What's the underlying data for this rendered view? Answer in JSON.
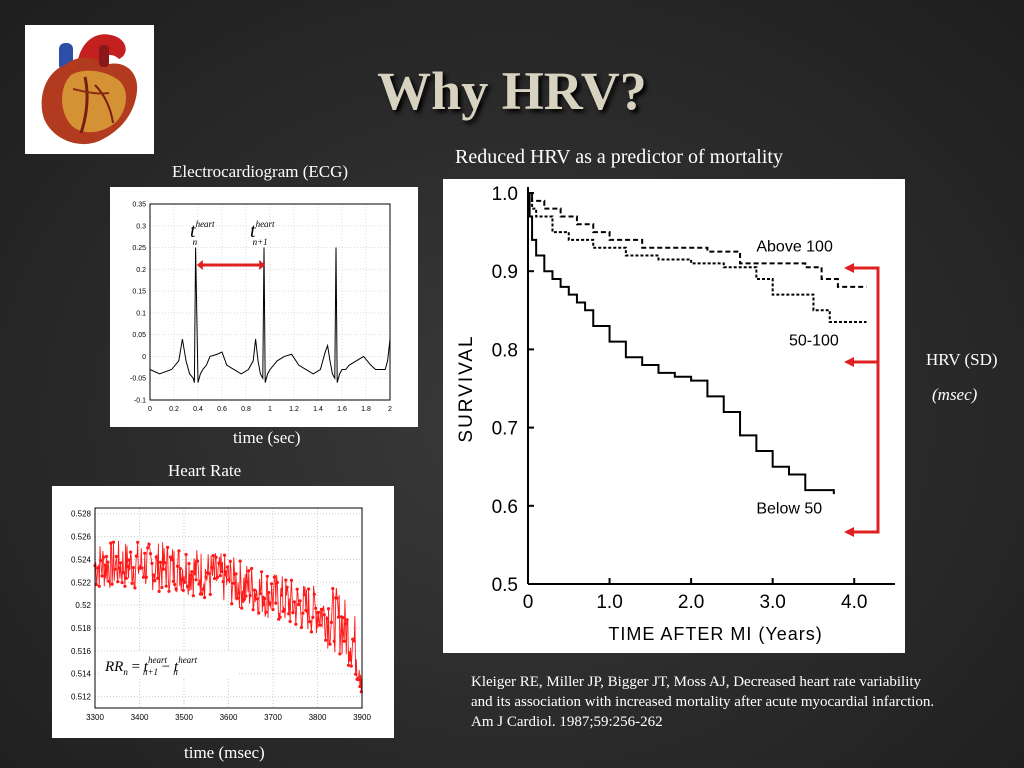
{
  "title": "Why HRV?",
  "labels": {
    "ecg_title": "Electrocardiogram (ECG)",
    "ecg_xlabel": "time (sec)",
    "hr_title": "Heart Rate",
    "hr_xlabel": "time (msec)",
    "survival_title": "Reduced HRV as a predictor of mortality",
    "hrv_label": "HRV (SD)",
    "hrv_unit": "(msec)"
  },
  "reference": "Kleiger RE, Miller JP, Bigger JT, Moss AJ, Decreased heart rate variability and its association with increased mortality after acute myocardial infarction. Am J Cardiol. 1987;59:256-262",
  "chart_data": [
    {
      "type": "line",
      "title": "Electrocardiogram (ECG)",
      "xlabel": "time (sec)",
      "ylabel": "",
      "xlim": [
        0,
        2
      ],
      "ylim": [
        -0.1,
        0.35
      ],
      "x_ticks": [
        "0",
        "0.2",
        "0.4",
        "0.6",
        "0.8",
        "1",
        "1.2",
        "1.4",
        "1.6",
        "1.8",
        "2"
      ],
      "y_ticks": [
        "-0.1",
        "-0.05",
        "0",
        "0.05",
        "0.1",
        "0.15",
        "0.2",
        "0.25",
        "0.3",
        "0.35"
      ],
      "series": [
        {
          "name": "ECG",
          "x": [
            0,
            0.08,
            0.18,
            0.24,
            0.27,
            0.3,
            0.33,
            0.36,
            0.37,
            0.38,
            0.4,
            0.42,
            0.44,
            0.47,
            0.5,
            0.56,
            0.6,
            0.64,
            0.7,
            0.76,
            0.82,
            0.86,
            0.88,
            0.9,
            0.92,
            0.94,
            0.95,
            0.96,
            0.98,
            1.0,
            1.03,
            1.06,
            1.12,
            1.18,
            1.24,
            1.3,
            1.36,
            1.42,
            1.46,
            1.48,
            1.5,
            1.52,
            1.54,
            1.55,
            1.56,
            1.58,
            1.6,
            1.63,
            1.66,
            1.72,
            1.78,
            1.84,
            1.88,
            1.92,
            1.96,
            1.98,
            2.0
          ],
          "y": [
            -0.03,
            -0.04,
            -0.03,
            -0.01,
            0.04,
            -0.01,
            -0.04,
            -0.05,
            -0.06,
            0.25,
            -0.06,
            -0.04,
            -0.03,
            -0.02,
            0.0,
            0.005,
            0.01,
            -0.02,
            -0.03,
            -0.04,
            -0.03,
            -0.01,
            0.04,
            -0.01,
            -0.04,
            -0.05,
            0.25,
            -0.06,
            -0.04,
            -0.03,
            -0.02,
            -0.01,
            0.0,
            0.005,
            -0.02,
            -0.03,
            -0.04,
            -0.03,
            0.01,
            0.025,
            -0.01,
            -0.04,
            -0.05,
            0.25,
            -0.06,
            -0.04,
            -0.03,
            -0.03,
            -0.02,
            -0.01,
            0.0,
            -0.02,
            -0.03,
            -0.03,
            -0.03,
            -0.01,
            0.04
          ]
        }
      ],
      "annotations": [
        "t_n^heart",
        "t_{n+1}^heart"
      ]
    },
    {
      "type": "line",
      "title": "Heart Rate",
      "xlabel": "time (msec)",
      "ylabel": "",
      "xlim": [
        3300,
        3900
      ],
      "ylim": [
        0.511,
        0.5285
      ],
      "x_ticks": [
        "3300",
        "3400",
        "3500",
        "3600",
        "3700",
        "3800",
        "3900"
      ],
      "y_ticks": [
        "0.512",
        "0.514",
        "0.516",
        "0.518",
        "0.52",
        "0.522",
        "0.524",
        "0.526",
        "0.528"
      ],
      "trend": {
        "x": [
          3300,
          3400,
          3500,
          3600,
          3700,
          3750,
          3800,
          3850,
          3880,
          3900
        ],
        "y": [
          0.5235,
          0.5235,
          0.5232,
          0.5222,
          0.5208,
          0.52,
          0.5195,
          0.5185,
          0.517,
          0.5145
        ]
      },
      "noise_amplitude": 0.0022,
      "annotations": [
        "RR_n = t_{n+1}^heart - t_n^heart"
      ]
    },
    {
      "type": "line",
      "title": "Reduced HRV as a predictor of mortality",
      "xlabel": "TIME AFTER MI (Years)",
      "ylabel": "SURVIVAL",
      "xlim": [
        0,
        4.5
      ],
      "ylim": [
        0.5,
        1.0
      ],
      "x_ticks": [
        "0",
        "1.0",
        "2.0",
        "3.0",
        "4.0"
      ],
      "y_ticks": [
        "0.5",
        "0.6",
        "0.7",
        "0.8",
        "0.9",
        "1.0"
      ],
      "series": [
        {
          "name": "Above 100",
          "x": [
            0,
            0.05,
            0.2,
            0.4,
            0.6,
            0.8,
            1.0,
            1.4,
            1.8,
            2.2,
            2.6,
            3.0,
            3.4,
            3.6,
            3.8,
            4.0,
            4.15
          ],
          "y": [
            1.0,
            0.99,
            0.98,
            0.97,
            0.96,
            0.95,
            0.94,
            0.93,
            0.93,
            0.925,
            0.91,
            0.91,
            0.905,
            0.89,
            0.88,
            0.88,
            0.88
          ]
        },
        {
          "name": "50-100",
          "x": [
            0,
            0.05,
            0.1,
            0.3,
            0.5,
            0.8,
            1.2,
            1.6,
            2.0,
            2.4,
            2.8,
            3.0,
            3.3,
            3.5,
            3.7,
            4.0,
            4.15
          ],
          "y": [
            1.0,
            0.98,
            0.97,
            0.95,
            0.94,
            0.93,
            0.92,
            0.915,
            0.91,
            0.905,
            0.89,
            0.87,
            0.87,
            0.85,
            0.835,
            0.835,
            0.835
          ]
        },
        {
          "name": "Below 50",
          "x": [
            0,
            0.02,
            0.05,
            0.1,
            0.2,
            0.3,
            0.4,
            0.5,
            0.6,
            0.7,
            0.8,
            1.0,
            1.2,
            1.4,
            1.6,
            1.8,
            2.0,
            2.2,
            2.4,
            2.6,
            2.8,
            3.0,
            3.2,
            3.4,
            3.75
          ],
          "y": [
            1.0,
            0.97,
            0.94,
            0.92,
            0.9,
            0.89,
            0.88,
            0.87,
            0.86,
            0.85,
            0.83,
            0.81,
            0.79,
            0.78,
            0.77,
            0.765,
            0.76,
            0.74,
            0.72,
            0.69,
            0.67,
            0.65,
            0.64,
            0.62,
            0.615
          ]
        }
      ]
    }
  ]
}
